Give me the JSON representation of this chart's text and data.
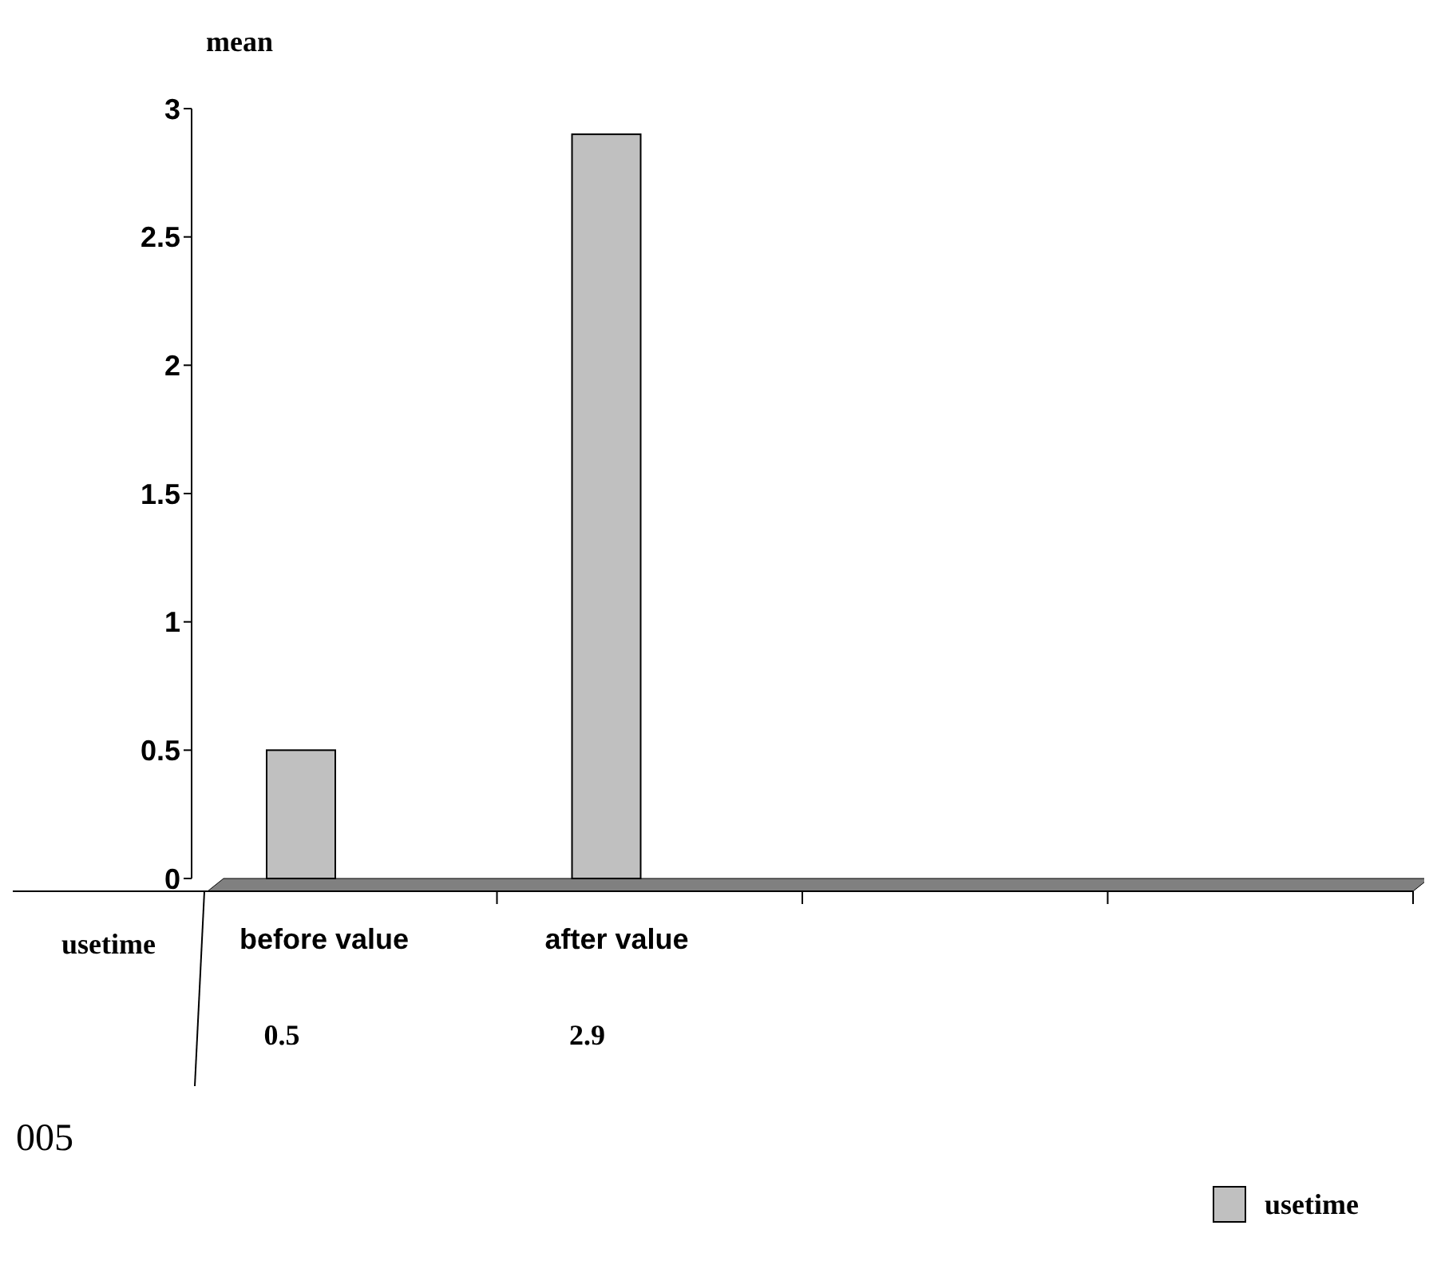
{
  "chart_data": {
    "type": "bar",
    "ylabel": "mean",
    "categories": [
      "before value",
      "after value",
      null,
      null
    ],
    "series": [
      {
        "name": "usetime",
        "color": "#c0c0c0",
        "values": [
          0.5,
          2.9,
          null,
          null
        ]
      }
    ],
    "ylim": [
      0,
      3
    ],
    "yticks": [
      0,
      0.5,
      1,
      1.5,
      2,
      2.5,
      3
    ],
    "data_labels": true,
    "legend": "bottom right",
    "grid": false,
    "annotations": [
      "005"
    ]
  }
}
